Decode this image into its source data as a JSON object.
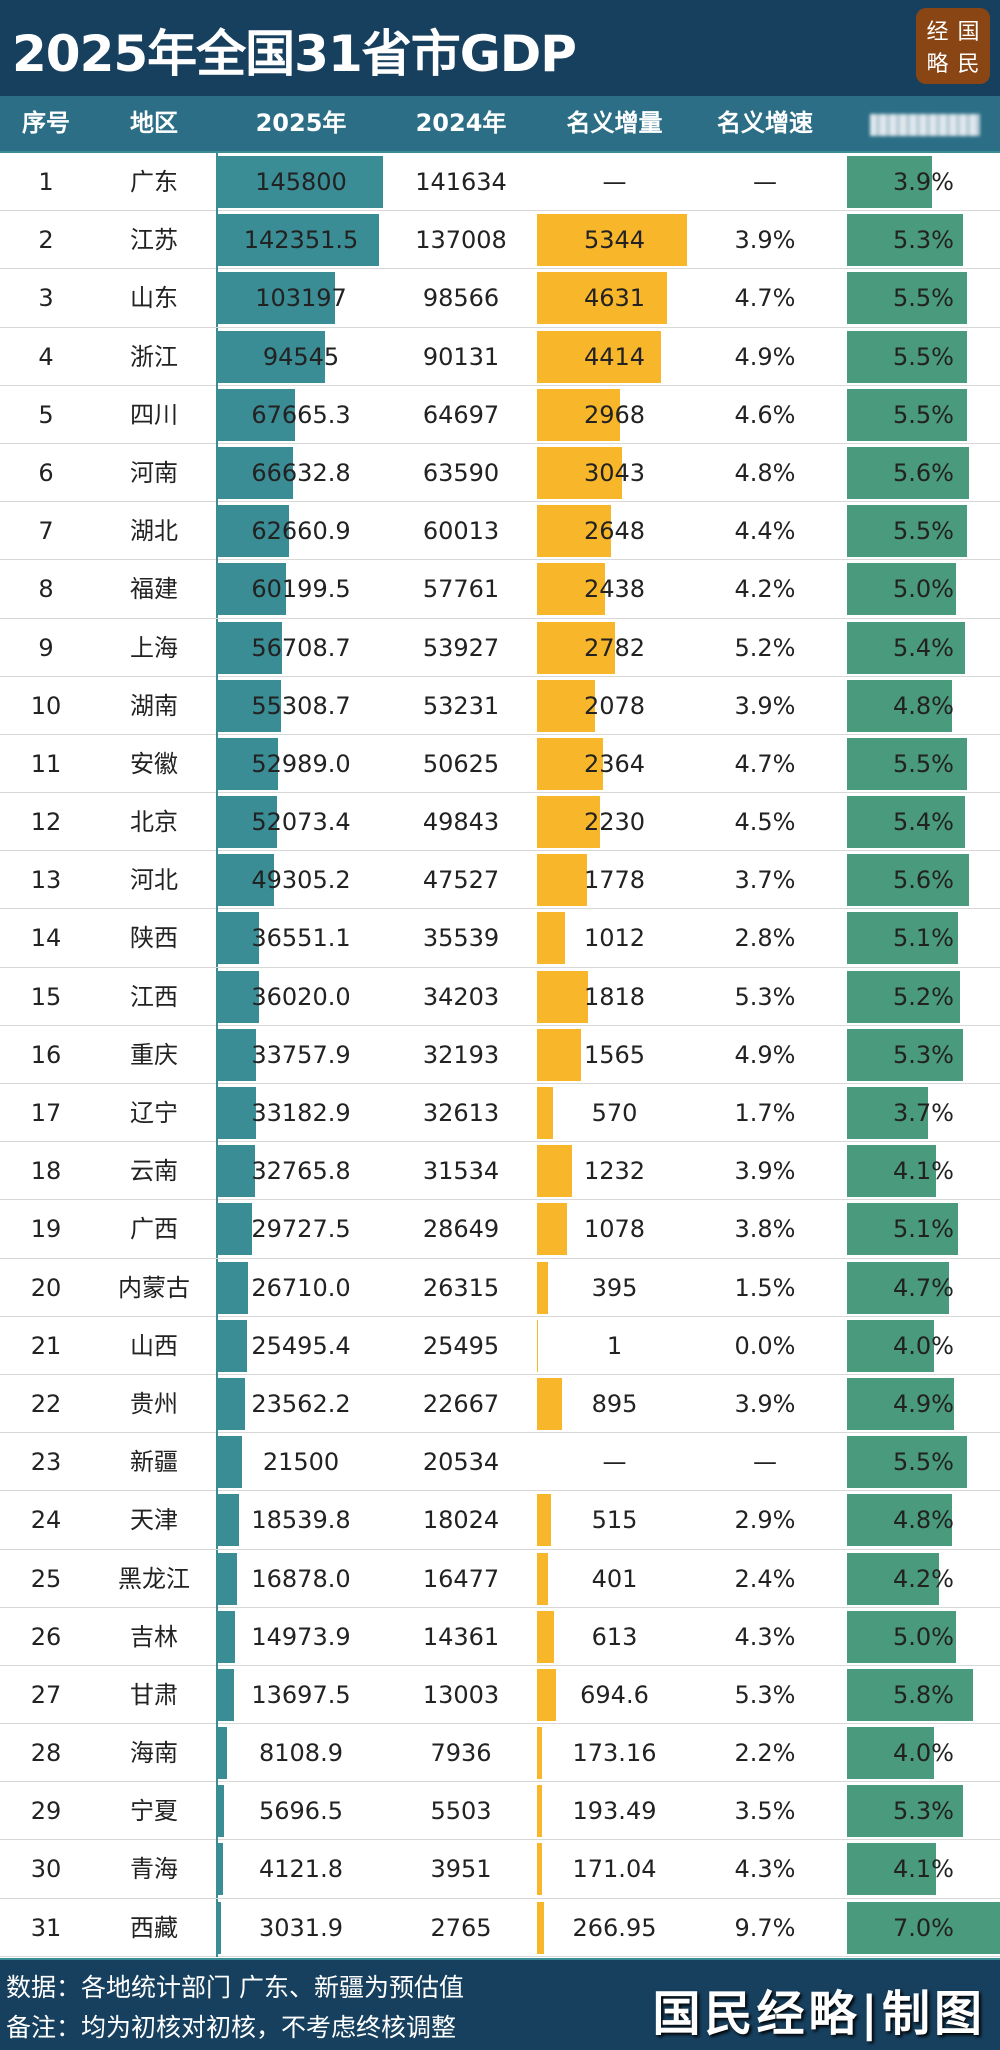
{
  "title": "2025年全国31省市GDP",
  "logo": [
    "经",
    "国",
    "略",
    "民"
  ],
  "headers": {
    "rank": "序号",
    "region": "地区",
    "y2025": "2025年",
    "y2024": "2024年",
    "increment": "名义增量",
    "growth": "名义增速",
    "real_growth": ""
  },
  "colors": {
    "title_bg": "#17405f",
    "header_bg": "#2b6e86",
    "gdp_bar": "#3a8c95",
    "increment_bar": "#f8b62a",
    "real_growth_bar": "#4a9a7d"
  },
  "rows": [
    [
      "1",
      "广东",
      "145800",
      "141634",
      "—",
      "—",
      "3.9%"
    ],
    [
      "2",
      "江苏",
      "142351.5",
      "137008",
      "5344",
      "3.9%",
      "5.3%"
    ],
    [
      "3",
      "山东",
      "103197",
      "98566",
      "4631",
      "4.7%",
      "5.5%"
    ],
    [
      "4",
      "浙江",
      "94545",
      "90131",
      "4414",
      "4.9%",
      "5.5%"
    ],
    [
      "5",
      "四川",
      "67665.3",
      "64697",
      "2968",
      "4.6%",
      "5.5%"
    ],
    [
      "6",
      "河南",
      "66632.8",
      "63590",
      "3043",
      "4.8%",
      "5.6%"
    ],
    [
      "7",
      "湖北",
      "62660.9",
      "60013",
      "2648",
      "4.4%",
      "5.5%"
    ],
    [
      "8",
      "福建",
      "60199.5",
      "57761",
      "2438",
      "4.2%",
      "5.0%"
    ],
    [
      "9",
      "上海",
      "56708.7",
      "53927",
      "2782",
      "5.2%",
      "5.4%"
    ],
    [
      "10",
      "湖南",
      "55308.7",
      "53231",
      "2078",
      "3.9%",
      "4.8%"
    ],
    [
      "11",
      "安徽",
      "52989.0",
      "50625",
      "2364",
      "4.7%",
      "5.5%"
    ],
    [
      "12",
      "北京",
      "52073.4",
      "49843",
      "2230",
      "4.5%",
      "5.4%"
    ],
    [
      "13",
      "河北",
      "49305.2",
      "47527",
      "1778",
      "3.7%",
      "5.6%"
    ],
    [
      "14",
      "陕西",
      "36551.1",
      "35539",
      "1012",
      "2.8%",
      "5.1%"
    ],
    [
      "15",
      "江西",
      "36020.0",
      "34203",
      "1818",
      "5.3%",
      "5.2%"
    ],
    [
      "16",
      "重庆",
      "33757.9",
      "32193",
      "1565",
      "4.9%",
      "5.3%"
    ],
    [
      "17",
      "辽宁",
      "33182.9",
      "32613",
      "570",
      "1.7%",
      "3.7%"
    ],
    [
      "18",
      "云南",
      "32765.8",
      "31534",
      "1232",
      "3.9%",
      "4.1%"
    ],
    [
      "19",
      "广西",
      "29727.5",
      "28649",
      "1078",
      "3.8%",
      "5.1%"
    ],
    [
      "20",
      "内蒙古",
      "26710.0",
      "26315",
      "395",
      "1.5%",
      "4.7%"
    ],
    [
      "21",
      "山西",
      "25495.4",
      "25495",
      "1",
      "0.0%",
      "4.0%"
    ],
    [
      "22",
      "贵州",
      "23562.2",
      "22667",
      "895",
      "3.9%",
      "4.9%"
    ],
    [
      "23",
      "新疆",
      "21500",
      "20534",
      "—",
      "—",
      "5.5%"
    ],
    [
      "24",
      "天津",
      "18539.8",
      "18024",
      "515",
      "2.9%",
      "4.8%"
    ],
    [
      "25",
      "黑龙江",
      "16878.0",
      "16477",
      "401",
      "2.4%",
      "4.2%"
    ],
    [
      "26",
      "吉林",
      "14973.9",
      "14361",
      "613",
      "4.3%",
      "5.0%"
    ],
    [
      "27",
      "甘肃",
      "13697.5",
      "13003",
      "694.6",
      "5.3%",
      "5.8%"
    ],
    [
      "28",
      "海南",
      "8108.9",
      "7936",
      "173.16",
      "2.2%",
      "4.0%"
    ],
    [
      "29",
      "宁夏",
      "5696.5",
      "5503",
      "193.49",
      "3.5%",
      "5.3%"
    ],
    [
      "30",
      "青海",
      "4121.8",
      "3951",
      "171.04",
      "4.3%",
      "4.1%"
    ],
    [
      "31",
      "西藏",
      "3031.9",
      "2765",
      "266.95",
      "9.7%",
      "7.0%"
    ]
  ],
  "footer": {
    "source": "数据：各地统计部门  广东、新疆为预估值",
    "note": "备注：均为初核对初核，不考虑终核调整",
    "credit": "国民经略|制图"
  }
}
